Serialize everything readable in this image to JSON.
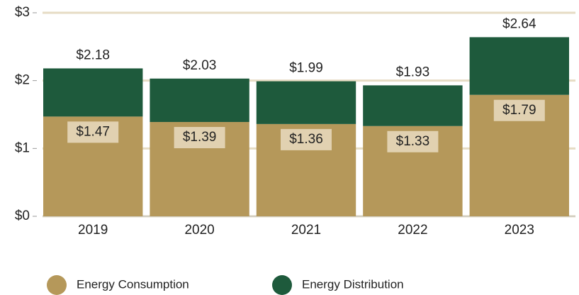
{
  "chart_data": {
    "type": "stacked_bar",
    "categories": [
      "2019",
      "2020",
      "2021",
      "2022",
      "2023"
    ],
    "series": [
      {
        "name": "Energy Consumption",
        "color": "#b5985a",
        "values": [
          1.47,
          1.39,
          1.36,
          1.33,
          1.79
        ],
        "value_labels": [
          "$1.47",
          "$1.39",
          "$1.36",
          "$1.33",
          "$1.79"
        ]
      },
      {
        "name": "Energy Distribution",
        "color": "#1e5a3c",
        "values": [
          0.71,
          0.64,
          0.63,
          0.6,
          0.85
        ]
      }
    ],
    "totals": [
      2.18,
      2.03,
      1.99,
      1.93,
      2.64
    ],
    "total_labels": [
      "$2.18",
      "$2.03",
      "$1.99",
      "$1.93",
      "$2.64"
    ],
    "ylim": [
      0,
      3
    ],
    "yticks": [
      {
        "value": 0,
        "label": "$0"
      },
      {
        "value": 1,
        "label": "$1"
      },
      {
        "value": 2,
        "label": "$2"
      },
      {
        "value": 3,
        "label": "$3"
      }
    ],
    "grid": true
  }
}
